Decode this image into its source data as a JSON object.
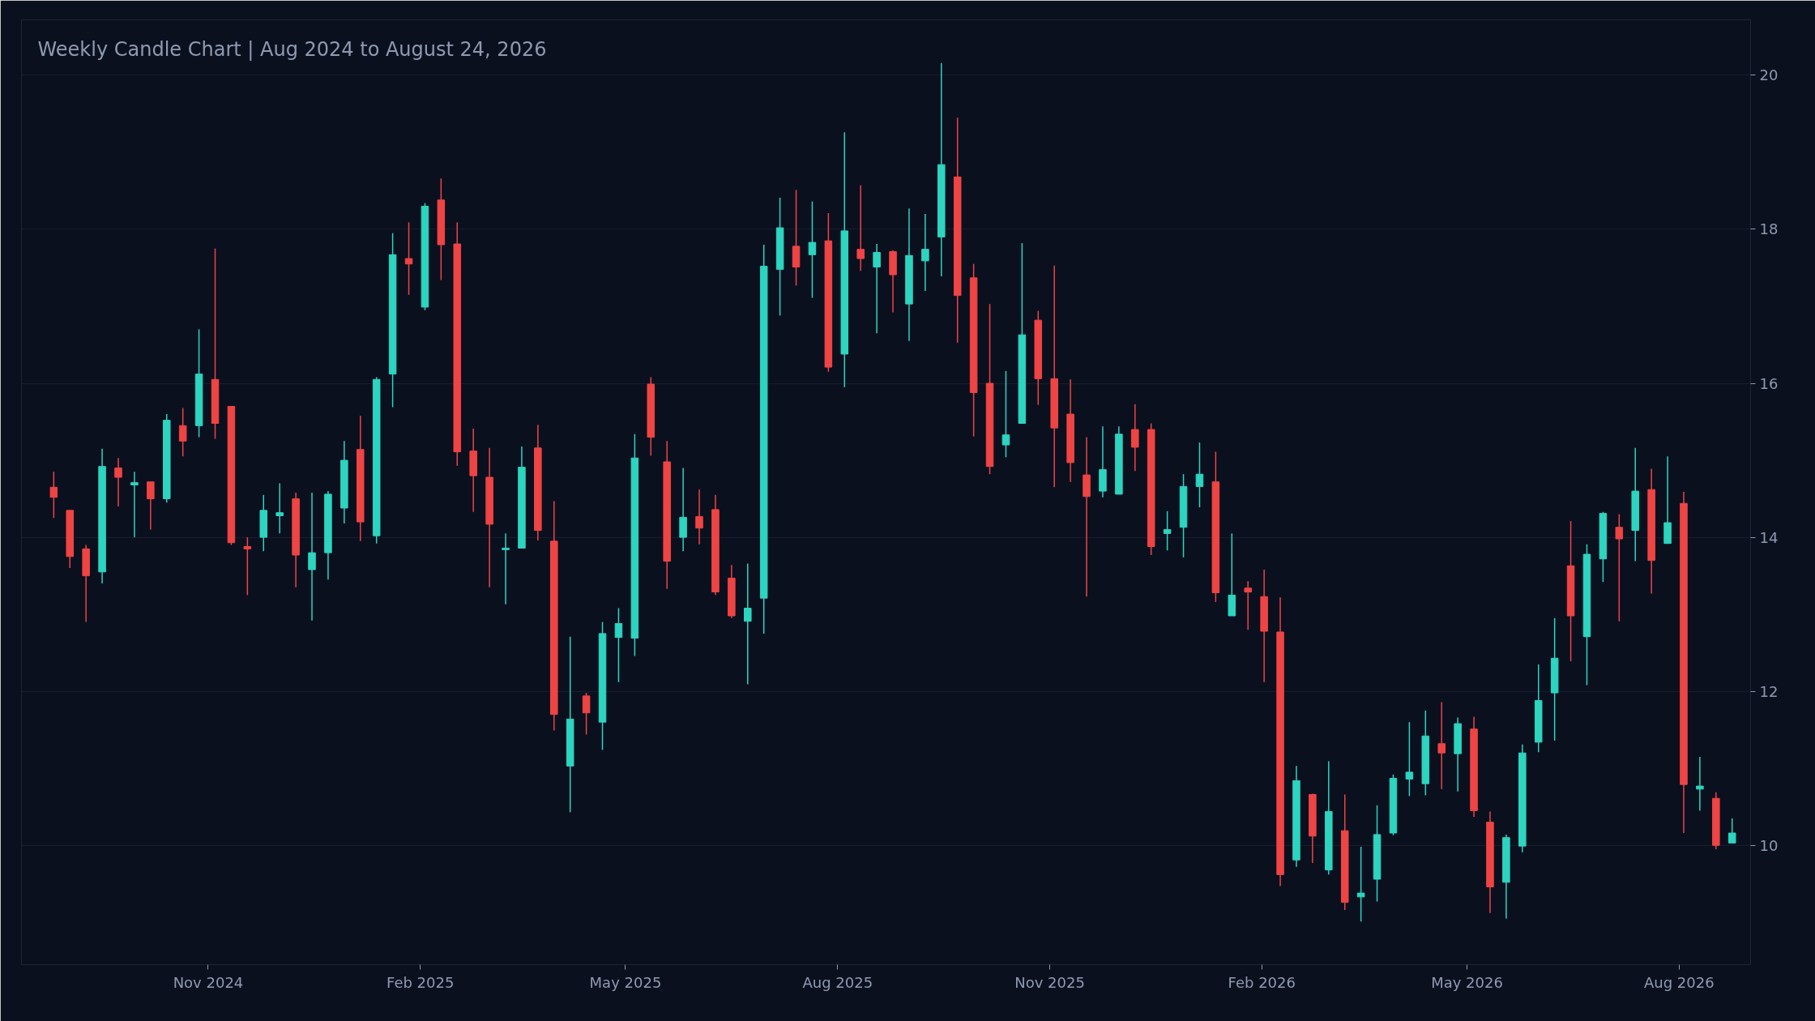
{
  "chart_data": {
    "type": "candlestick",
    "title": "Weekly Candle Chart | Aug 2024 to August 24, 2026",
    "x": [
      "2024-08-26",
      "2024-09-02",
      "2024-09-09",
      "2024-09-16",
      "2024-09-23",
      "2024-09-30",
      "2024-10-07",
      "2024-10-14",
      "2024-10-21",
      "2024-10-28",
      "2024-11-04",
      "2024-11-11",
      "2024-11-18",
      "2024-11-25",
      "2024-12-02",
      "2024-12-09",
      "2024-12-16",
      "2024-12-23",
      "2024-12-30",
      "2025-01-06",
      "2025-01-13",
      "2025-01-20",
      "2025-01-27",
      "2025-02-03",
      "2025-02-10",
      "2025-02-17",
      "2025-02-24",
      "2025-03-03",
      "2025-03-10",
      "2025-03-17",
      "2025-03-24",
      "2025-03-31",
      "2025-04-07",
      "2025-04-14",
      "2025-04-21",
      "2025-04-28",
      "2025-05-05",
      "2025-05-12",
      "2025-05-19",
      "2025-05-26",
      "2025-06-02",
      "2025-06-09",
      "2025-06-16",
      "2025-06-23",
      "2025-06-30",
      "2025-07-07",
      "2025-07-14",
      "2025-07-21",
      "2025-07-28",
      "2025-08-04",
      "2025-08-11",
      "2025-08-18",
      "2025-08-25",
      "2025-09-01",
      "2025-09-08",
      "2025-09-15",
      "2025-09-22",
      "2025-09-29",
      "2025-10-06",
      "2025-10-13",
      "2025-10-20",
      "2025-10-27",
      "2025-11-03",
      "2025-11-10",
      "2025-11-17",
      "2025-11-24",
      "2025-12-01",
      "2025-12-08",
      "2025-12-15",
      "2025-12-22",
      "2025-12-29",
      "2026-01-05",
      "2026-01-12",
      "2026-01-19",
      "2026-01-26",
      "2026-02-02",
      "2026-02-09",
      "2026-02-16",
      "2026-02-23",
      "2026-03-02",
      "2026-03-09",
      "2026-03-16",
      "2026-03-23",
      "2026-03-30",
      "2026-04-06",
      "2026-04-13",
      "2026-04-20",
      "2026-04-27",
      "2026-05-04",
      "2026-05-11",
      "2026-05-18",
      "2026-05-25",
      "2026-06-01",
      "2026-06-08",
      "2026-06-15",
      "2026-06-22",
      "2026-06-29",
      "2026-07-06",
      "2026-07-13",
      "2026-07-20",
      "2026-07-27",
      "2026-08-03",
      "2026-08-10",
      "2026-08-17",
      "2026-08-24"
    ],
    "ohlc": [
      [
        14.65,
        14.85,
        14.25,
        14.52
      ],
      [
        14.35,
        14.35,
        13.6,
        13.75
      ],
      [
        13.85,
        13.9,
        12.9,
        13.5
      ],
      [
        13.55,
        15.15,
        13.4,
        14.92
      ],
      [
        14.9,
        15.03,
        14.4,
        14.78
      ],
      [
        14.68,
        14.85,
        14.0,
        14.71
      ],
      [
        14.72,
        14.72,
        14.1,
        14.5
      ],
      [
        14.5,
        15.6,
        14.45,
        15.52
      ],
      [
        15.45,
        15.68,
        15.05,
        15.25
      ],
      [
        15.45,
        16.7,
        15.3,
        16.12
      ],
      [
        16.05,
        17.75,
        15.28,
        15.48
      ],
      [
        15.7,
        15.7,
        13.9,
        13.93
      ],
      [
        13.88,
        14.0,
        13.25,
        13.85
      ],
      [
        14.0,
        14.55,
        13.82,
        14.35
      ],
      [
        14.28,
        14.7,
        14.05,
        14.32
      ],
      [
        14.5,
        14.58,
        13.35,
        13.77
      ],
      [
        13.58,
        14.58,
        12.92,
        13.8
      ],
      [
        13.8,
        14.6,
        13.45,
        14.56
      ],
      [
        14.38,
        15.25,
        14.18,
        15.0
      ],
      [
        15.14,
        15.58,
        13.95,
        14.2
      ],
      [
        14.02,
        16.08,
        13.92,
        16.05
      ],
      [
        16.12,
        17.95,
        15.69,
        17.67
      ],
      [
        17.62,
        18.09,
        17.15,
        17.55
      ],
      [
        16.99,
        18.34,
        16.95,
        18.3
      ],
      [
        18.38,
        18.66,
        17.34,
        17.8
      ],
      [
        17.81,
        18.09,
        14.93,
        15.11
      ],
      [
        15.12,
        15.41,
        14.33,
        14.8
      ],
      [
        14.78,
        15.16,
        13.35,
        14.17
      ],
      [
        13.84,
        14.05,
        13.13,
        13.86
      ],
      [
        13.86,
        15.18,
        13.86,
        14.91
      ],
      [
        15.16,
        15.46,
        13.96,
        14.09
      ],
      [
        13.95,
        14.47,
        11.49,
        11.7
      ],
      [
        11.03,
        12.71,
        10.43,
        11.64
      ],
      [
        11.94,
        11.98,
        11.44,
        11.72
      ],
      [
        11.6,
        12.9,
        11.24,
        12.75
      ],
      [
        12.7,
        13.08,
        12.12,
        12.88
      ],
      [
        12.69,
        15.34,
        12.46,
        15.03
      ],
      [
        15.99,
        16.08,
        15.06,
        15.3
      ],
      [
        14.98,
        15.25,
        13.33,
        13.69
      ],
      [
        14.0,
        14.9,
        13.82,
        14.26
      ],
      [
        14.27,
        14.62,
        13.91,
        14.12
      ],
      [
        14.36,
        14.55,
        13.25,
        13.29
      ],
      [
        13.47,
        13.64,
        12.95,
        12.98
      ],
      [
        12.91,
        13.66,
        12.09,
        13.08
      ],
      [
        13.21,
        17.8,
        12.75,
        17.52
      ],
      [
        17.48,
        18.41,
        16.88,
        18.02
      ],
      [
        17.78,
        18.51,
        17.27,
        17.51
      ],
      [
        17.67,
        18.36,
        17.11,
        17.83
      ],
      [
        17.85,
        18.21,
        16.15,
        16.21
      ],
      [
        16.38,
        19.26,
        15.95,
        17.98
      ],
      [
        17.74,
        18.57,
        17.46,
        17.62
      ],
      [
        17.51,
        17.81,
        16.65,
        17.7
      ],
      [
        17.71,
        17.73,
        16.92,
        17.41
      ],
      [
        17.03,
        18.27,
        16.55,
        17.66
      ],
      [
        17.59,
        18.2,
        17.2,
        17.74
      ],
      [
        17.9,
        20.16,
        17.39,
        18.84
      ],
      [
        18.68,
        19.45,
        16.53,
        17.14
      ],
      [
        17.37,
        17.55,
        15.31,
        15.88
      ],
      [
        16.0,
        17.03,
        14.82,
        14.92
      ],
      [
        15.2,
        16.16,
        15.04,
        15.33
      ],
      [
        15.48,
        17.82,
        15.48,
        16.63
      ],
      [
        16.82,
        16.94,
        15.72,
        16.06
      ],
      [
        16.06,
        17.53,
        14.65,
        15.42
      ],
      [
        15.6,
        16.05,
        14.72,
        14.97
      ],
      [
        14.81,
        15.3,
        13.23,
        14.53
      ],
      [
        14.6,
        15.44,
        14.52,
        14.88
      ],
      [
        14.56,
        15.44,
        14.56,
        15.34
      ],
      [
        15.4,
        15.73,
        14.86,
        15.17
      ],
      [
        15.4,
        15.48,
        13.77,
        13.88
      ],
      [
        14.05,
        14.34,
        13.83,
        14.1
      ],
      [
        14.13,
        14.82,
        13.74,
        14.66
      ],
      [
        14.66,
        15.23,
        14.39,
        14.82
      ],
      [
        14.72,
        15.11,
        13.16,
        13.28
      ],
      [
        12.98,
        14.05,
        12.98,
        13.25
      ],
      [
        13.34,
        13.43,
        12.8,
        13.29
      ],
      [
        13.23,
        13.58,
        12.12,
        12.78
      ],
      [
        12.77,
        13.22,
        9.47,
        9.62
      ],
      [
        9.81,
        11.03,
        9.72,
        10.84
      ],
      [
        10.66,
        10.67,
        9.77,
        10.12
      ],
      [
        9.68,
        11.09,
        9.62,
        10.44
      ],
      [
        10.19,
        10.66,
        9.16,
        9.26
      ],
      [
        9.33,
        9.98,
        9.01,
        9.38
      ],
      [
        9.56,
        10.52,
        9.27,
        10.14
      ],
      [
        10.16,
        10.92,
        10.13,
        10.87
      ],
      [
        10.86,
        11.6,
        10.64,
        10.95
      ],
      [
        10.8,
        11.75,
        10.65,
        11.42
      ],
      [
        11.32,
        11.86,
        10.73,
        11.2
      ],
      [
        11.19,
        11.66,
        10.7,
        11.58
      ],
      [
        11.51,
        11.67,
        10.37,
        10.45
      ],
      [
        10.3,
        10.44,
        9.12,
        9.46
      ],
      [
        9.52,
        10.14,
        9.05,
        10.1
      ],
      [
        9.99,
        11.31,
        9.91,
        11.2
      ],
      [
        11.34,
        12.35,
        11.21,
        11.88
      ],
      [
        11.98,
        12.95,
        11.36,
        12.43
      ],
      [
        13.63,
        14.21,
        12.39,
        12.98
      ],
      [
        12.71,
        13.91,
        12.08,
        13.78
      ],
      [
        13.72,
        14.33,
        13.42,
        14.31
      ],
      [
        14.13,
        14.3,
        12.91,
        13.98
      ],
      [
        14.09,
        15.16,
        13.69,
        14.6
      ],
      [
        14.62,
        14.89,
        13.27,
        13.7
      ],
      [
        13.92,
        15.05,
        13.92,
        14.19
      ],
      [
        14.44,
        14.59,
        10.16,
        10.79
      ],
      [
        10.73,
        11.15,
        10.45,
        10.77
      ],
      [
        10.61,
        10.69,
        9.95,
        10.0
      ],
      [
        10.03,
        10.35,
        10.03,
        10.16
      ]
    ],
    "colors": [
      "#ef4444",
      "#ef4444",
      "#ef4444",
      "#2dd4bf",
      "#ef4444",
      "#2dd4bf",
      "#ef4444",
      "#2dd4bf",
      "#ef4444",
      "#2dd4bf",
      "#ef4444",
      "#ef4444",
      "#ef4444",
      "#2dd4bf",
      "#2dd4bf",
      "#ef4444",
      "#2dd4bf",
      "#2dd4bf",
      "#2dd4bf",
      "#ef4444",
      "#2dd4bf",
      "#2dd4bf",
      "#ef4444",
      "#2dd4bf",
      "#ef4444",
      "#ef4444",
      "#ef4444",
      "#ef4444",
      "#2dd4bf",
      "#2dd4bf",
      "#ef4444",
      "#ef4444",
      "#2dd4bf",
      "#ef4444",
      "#2dd4bf",
      "#2dd4bf",
      "#2dd4bf",
      "#ef4444",
      "#ef4444",
      "#2dd4bf",
      "#ef4444",
      "#ef4444",
      "#ef4444",
      "#2dd4bf",
      "#2dd4bf",
      "#2dd4bf",
      "#ef4444",
      "#2dd4bf",
      "#ef4444",
      "#2dd4bf",
      "#ef4444",
      "#2dd4bf",
      "#ef4444",
      "#2dd4bf",
      "#2dd4bf",
      "#2dd4bf",
      "#ef4444",
      "#ef4444",
      "#ef4444",
      "#2dd4bf",
      "#2dd4bf",
      "#ef4444",
      "#ef4444",
      "#ef4444",
      "#ef4444",
      "#2dd4bf",
      "#2dd4bf",
      "#ef4444",
      "#ef4444",
      "#2dd4bf",
      "#2dd4bf",
      "#2dd4bf",
      "#ef4444",
      "#2dd4bf",
      "#ef4444",
      "#ef4444",
      "#ef4444",
      "#2dd4bf",
      "#ef4444",
      "#2dd4bf",
      "#ef4444",
      "#2dd4bf",
      "#2dd4bf",
      "#2dd4bf",
      "#2dd4bf",
      "#2dd4bf",
      "#ef4444",
      "#2dd4bf",
      "#ef4444",
      "#ef4444",
      "#2dd4bf",
      "#2dd4bf",
      "#2dd4bf",
      "#2dd4bf",
      "#ef4444",
      "#2dd4bf",
      "#2dd4bf",
      "#ef4444",
      "#2dd4bf",
      "#ef4444",
      "#2dd4bf",
      "#ef4444",
      "#2dd4bf",
      "#ef4444",
      "#2dd4bf"
    ],
    "xlim": [
      "2024-08-12",
      "2026-09-01"
    ],
    "xticks": [
      {
        "value": "2024-11-01",
        "label": "Nov 2024"
      },
      {
        "value": "2025-02-01",
        "label": "Feb 2025"
      },
      {
        "value": "2025-05-01",
        "label": "May 2025"
      },
      {
        "value": "2025-08-01",
        "label": "Aug 2025"
      },
      {
        "value": "2025-11-01",
        "label": "Nov 2025"
      },
      {
        "value": "2026-02-01",
        "label": "Feb 2026"
      },
      {
        "value": "2026-05-01",
        "label": "May 2026"
      },
      {
        "value": "2026-08-01",
        "label": "Aug 2026"
      }
    ],
    "ylim": [
      8.45,
      20.72
    ],
    "yticks": [
      10,
      12,
      14,
      16,
      18,
      20
    ],
    "grid": "y"
  }
}
